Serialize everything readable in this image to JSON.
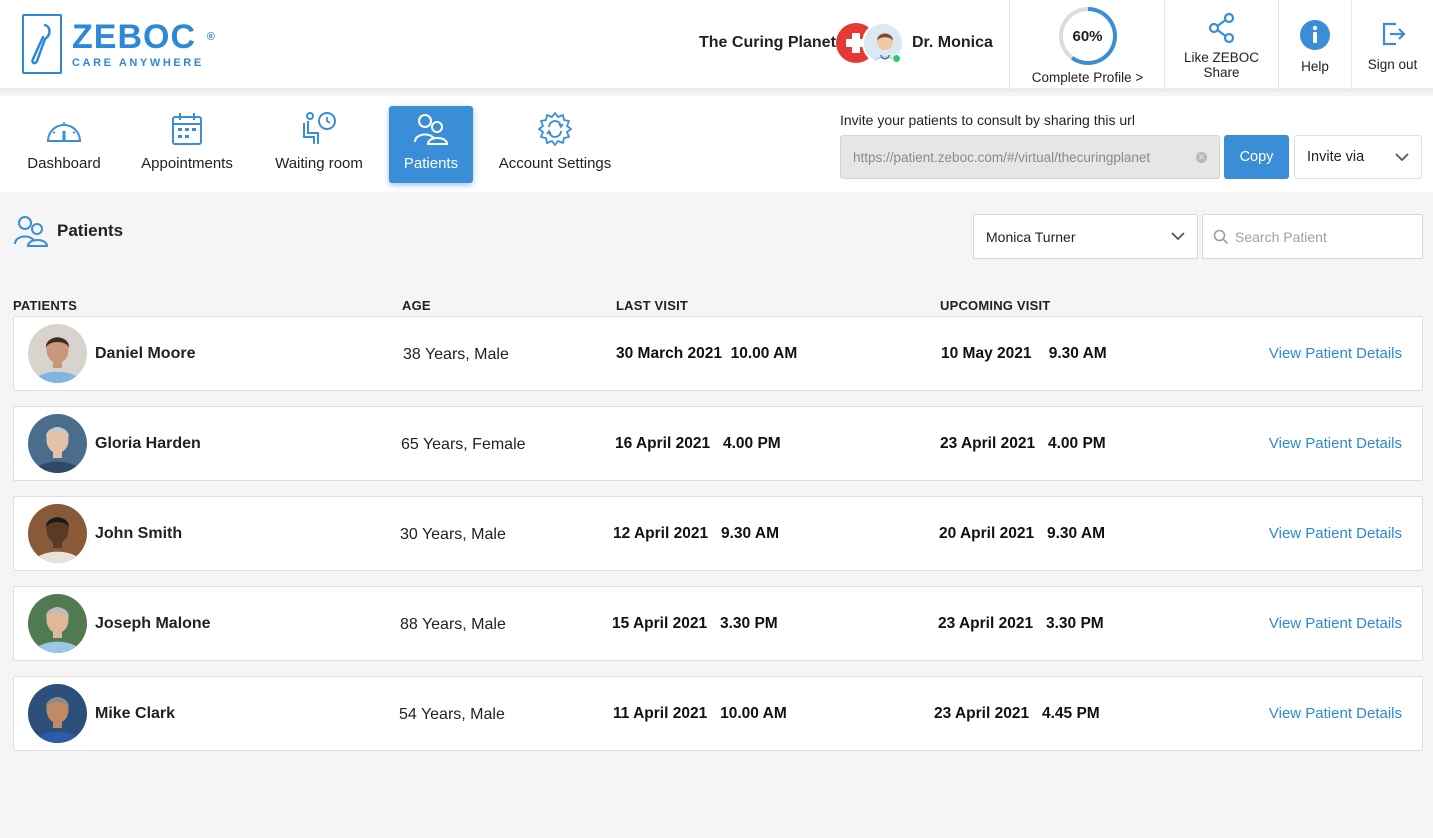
{
  "brand": {
    "name": "ZEBOC",
    "reg": "®",
    "tagline": "CARE ANYWHERE"
  },
  "header": {
    "clinic": "The Curing Planet",
    "doctor": "Dr. Monica",
    "profile_percent": "60%",
    "profile_progress": 0.6,
    "complete_profile": "Complete Profile >",
    "share_line1": "Like ZEBOC",
    "share_line2": "Share",
    "help": "Help",
    "signout": "Sign out"
  },
  "nav": [
    {
      "label": "Dashboard",
      "icon": "dashboard-gauge-icon",
      "active": false
    },
    {
      "label": "Appointments",
      "icon": "calendar-icon",
      "active": false
    },
    {
      "label": "Waiting room",
      "icon": "waiting-room-icon",
      "active": false
    },
    {
      "label": "Patients",
      "icon": "patients-icon",
      "active": true
    },
    {
      "label": "Account Settings",
      "icon": "settings-gear-icon",
      "active": false
    }
  ],
  "invite": {
    "label": "Invite your patients to consult by sharing this url",
    "url": "https://patient.zeboc.com/#/virtual/thecuringplanet",
    "copy": "Copy",
    "invite_via": "Invite via"
  },
  "page": {
    "title": "Patients",
    "doctor_filter": "Monica Turner",
    "search_placeholder": "Search Patient"
  },
  "columns": {
    "patients": "PATIENTS",
    "age": "AGE",
    "last_visit": "LAST VISIT",
    "upcoming_visit": "UPCOMING VISIT"
  },
  "view_label": "View Patient Details",
  "patients": [
    {
      "name": "Daniel Moore",
      "age": "38 Years, Male",
      "last_visit": "30 March 2021  10.00 AM",
      "upcoming_visit": "10 May 2021    9.30 AM",
      "avatar_bg": "#d8d3cc",
      "skin": "#c9987a",
      "hair": "#3a2a20",
      "shirt": "#7fb5e0"
    },
    {
      "name": "Gloria Harden",
      "age": "65 Years, Female",
      "last_visit": "16 April 2021   4.00 PM",
      "upcoming_visit": "23 April 2021   4.00 PM",
      "avatar_bg": "#4a6d8c",
      "skin": "#e3c2a8",
      "hair": "#c9c9c9",
      "shirt": "#2f4a66"
    },
    {
      "name": "John Smith",
      "age": "30 Years, Male",
      "last_visit": "12 April 2021   9.30 AM",
      "upcoming_visit": "20 April 2021   9.30 AM",
      "avatar_bg": "#8a5a38",
      "skin": "#5a3a24",
      "hair": "#1a1a1a",
      "shirt": "#e8e2d8"
    },
    {
      "name": "Joseph Malone",
      "age": "88 Years, Male",
      "last_visit": "15 April 2021   3.30 PM",
      "upcoming_visit": "23 April 2021   3.30 PM",
      "avatar_bg": "#4f7a52",
      "skin": "#e0b898",
      "hair": "#bdbdbd",
      "shirt": "#9cc6e8"
    },
    {
      "name": "Mike Clark",
      "age": "54 Years, Male",
      "last_visit": "11 April 2021   10.00 AM",
      "upcoming_visit": "23 April 2021   4.45 PM",
      "avatar_bg": "#2c4f7a",
      "skin": "#c08a66",
      "hair": "#8a8a8a",
      "shirt": "#2a5ca8"
    }
  ],
  "colors": {
    "accent": "#3a8ed8",
    "link": "#2f88d6",
    "online": "#2ecc71",
    "clinic_red": "#e53935"
  }
}
